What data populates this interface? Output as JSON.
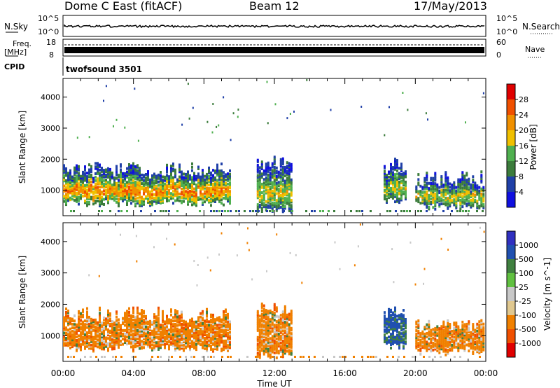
{
  "header": {
    "station": "Dome C East (fitACF)",
    "beam": "Beam 12",
    "date": "17/May/2013"
  },
  "noise_panel": {
    "left_label": "N.Sky",
    "right_label": "N.Search",
    "top_tick": "10^5",
    "bottom_tick": "10^0"
  },
  "freq_panel": {
    "left_label_1": "Freq.",
    "left_label_2": "[MHz]",
    "right_label": "Nave",
    "left_top": "18",
    "left_bottom": "8",
    "right_top": "60",
    "right_bottom": "0"
  },
  "cpid": {
    "label": "CPID",
    "value": "twofsound 3501"
  },
  "x_axis_label": "Time UT",
  "x_ticks": [
    "00:00",
    "04:00",
    "08:00",
    "12:00",
    "16:00",
    "20:00",
    "00:00"
  ],
  "y_axis_label": "Slant Range [km]",
  "y_ticks": [
    "1000",
    "2000",
    "3000",
    "4000"
  ],
  "colors": {
    "power_scale": [
      "#1010e0",
      "#2040a8",
      "#3c7c3c",
      "#50b050",
      "#f0c000",
      "#f09000",
      "#f05000",
      "#e00000"
    ],
    "velocity_scale": [
      "#e00000",
      "#f05000",
      "#f08000",
      "#e0c890",
      "#c8c8c8",
      "#60c040",
      "#408040",
      "#2050b0",
      "#3030c0"
    ]
  },
  "chart_data": [
    {
      "type": "heatmap",
      "title": "",
      "xlabel": "Time UT",
      "ylabel": "Slant Range [km]",
      "x_range": [
        "00:00",
        "24:00"
      ],
      "ylim": [
        180,
        4600
      ],
      "colorbar": {
        "label": "Power [dB]",
        "ticks": [
          "4",
          "8",
          "12",
          "16",
          "20",
          "24",
          "28"
        ],
        "range": [
          0,
          30
        ]
      },
      "regions": [
        {
          "start_h": 0.0,
          "end_h": 9.5,
          "range_km": [
            600,
            1900
          ],
          "power_db": 24
        },
        {
          "start_h": 11.0,
          "end_h": 13.0,
          "range_km": [
            400,
            2100
          ],
          "power_db": 18
        },
        {
          "start_h": 18.2,
          "end_h": 19.5,
          "range_km": [
            700,
            2000
          ],
          "power_db": 16
        },
        {
          "start_h": 20.0,
          "end_h": 23.9,
          "range_km": [
            500,
            1600
          ],
          "power_db": 18
        }
      ]
    },
    {
      "type": "heatmap",
      "title": "",
      "xlabel": "Time UT",
      "ylabel": "Slant Range [km]",
      "x_range": [
        "00:00",
        "24:00"
      ],
      "ylim": [
        180,
        4600
      ],
      "colorbar": {
        "label": "Velocity [m s^-1]",
        "ticks": [
          "1000",
          "500",
          "100",
          "25",
          "-25",
          "-100",
          "-500",
          "-1000"
        ],
        "range": [
          -1000,
          1000
        ]
      },
      "regions": [
        {
          "start_h": 0.0,
          "end_h": 9.5,
          "range_km": [
            600,
            1900
          ],
          "velocity_ms": -300
        },
        {
          "start_h": 11.0,
          "end_h": 13.0,
          "range_km": [
            400,
            2100
          ],
          "velocity_ms": -300
        },
        {
          "start_h": 18.2,
          "end_h": 19.5,
          "range_km": [
            700,
            2000
          ],
          "velocity_ms": 500
        },
        {
          "start_h": 20.0,
          "end_h": 23.9,
          "range_km": [
            500,
            1600
          ],
          "velocity_ms": -300
        }
      ]
    }
  ]
}
